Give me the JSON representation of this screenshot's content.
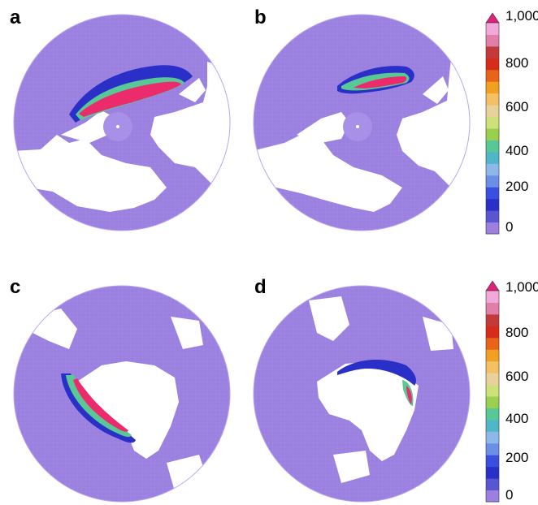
{
  "panels": [
    {
      "label": "a",
      "hemisphere": "north"
    },
    {
      "label": "b",
      "hemisphere": "north"
    },
    {
      "label": "c",
      "hemisphere": "south"
    },
    {
      "label": "d",
      "hemisphere": "south"
    }
  ],
  "colorbar": {
    "ticks": [
      "1,000",
      "800",
      "600",
      "400",
      "200",
      "0"
    ],
    "colors": [
      "#9b80e0",
      "#5a55d0",
      "#2a2fc8",
      "#3a4fe0",
      "#6c8ee6",
      "#8fb8ea",
      "#4fb8c8",
      "#57c896",
      "#9ad04e",
      "#cde07a",
      "#e8d29a",
      "#f3c063",
      "#f2a020",
      "#e86418",
      "#d82c1a",
      "#c33a3a",
      "#e080a8",
      "#f2a8d8"
    ],
    "extend_arrow_color": "#e0207a"
  },
  "colors": {
    "ocean": "#9b80e0",
    "land": "#ffffff",
    "high": "#ec2b6d"
  }
}
